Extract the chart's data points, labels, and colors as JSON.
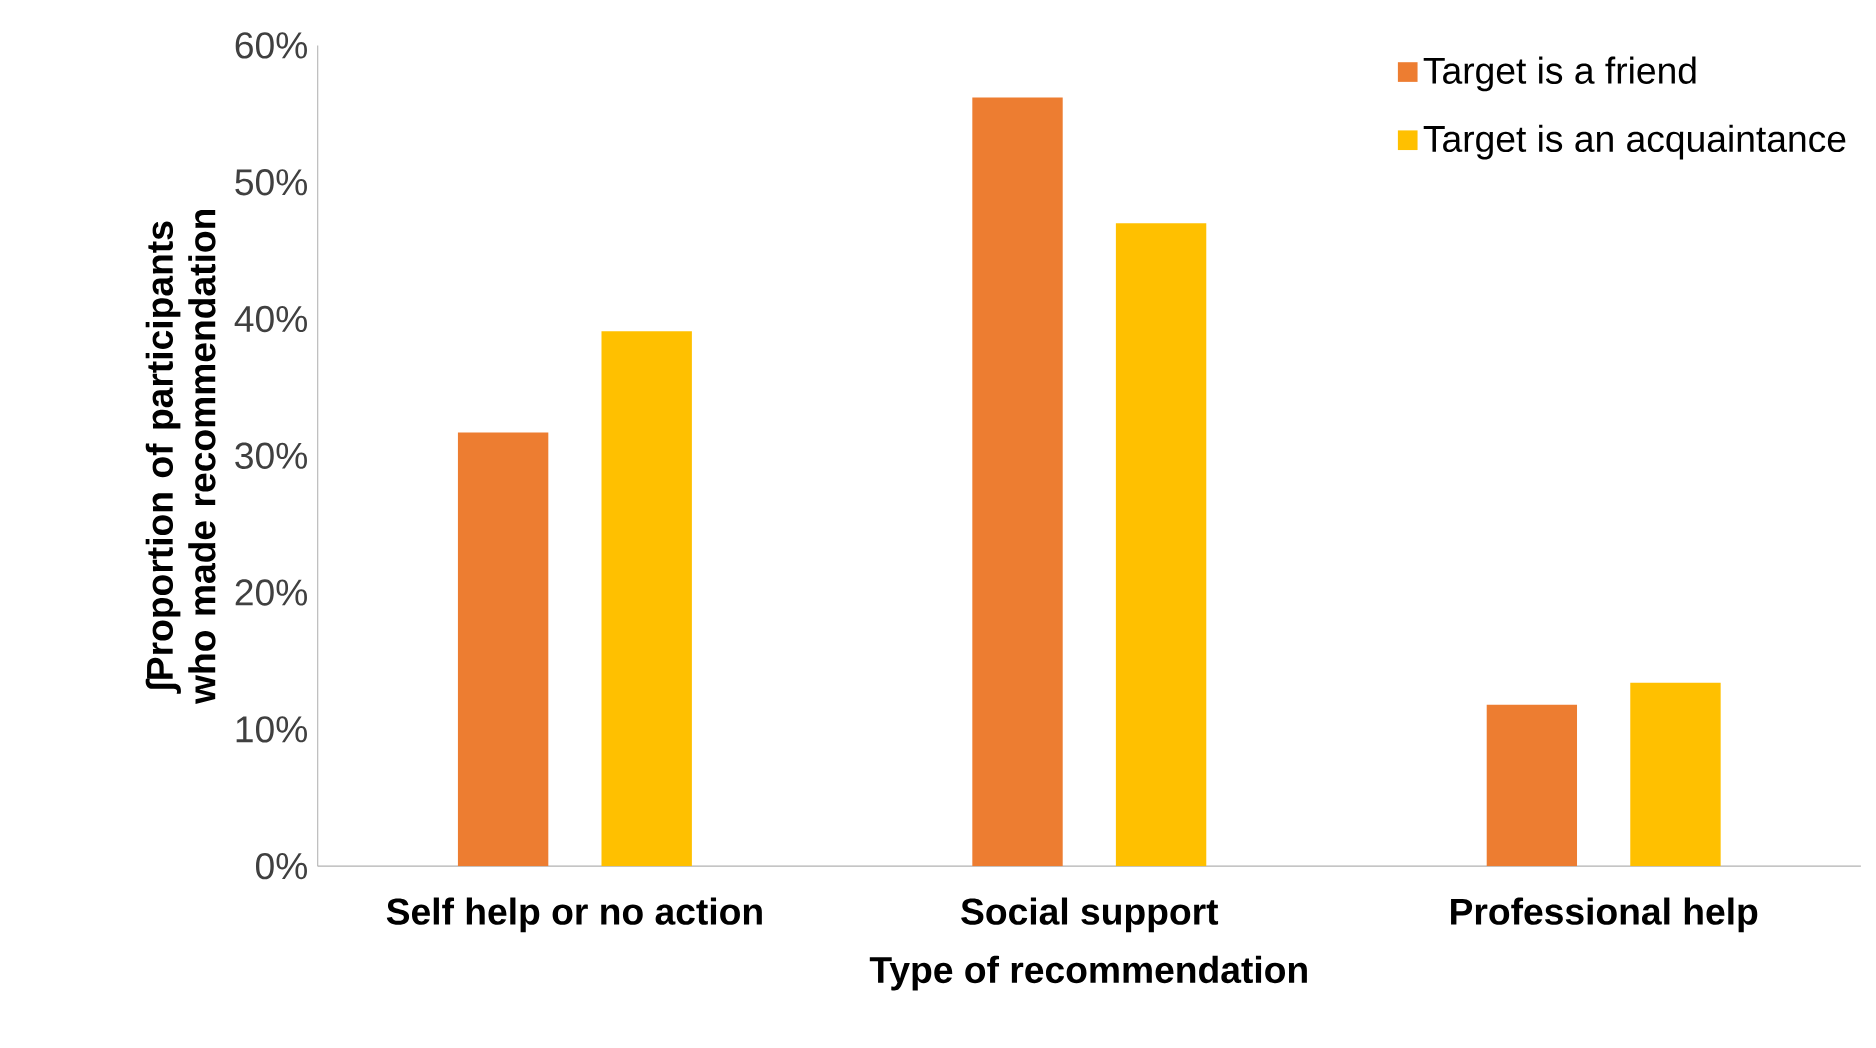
{
  "chart_data": {
    "type": "bar",
    "xlabel": "Type of recommendation",
    "ylabel": "∫Proportion of participants who made recommendation",
    "categories": [
      "Self help or no action",
      "Social support",
      "Professional help"
    ],
    "series": [
      {
        "name": "Target is a friend",
        "color": "#ed7d31",
        "values": [
          31.7,
          56.2,
          11.8
        ]
      },
      {
        "name": "Target is an acquaintance",
        "color": "#ffc000",
        "values": [
          39.1,
          47.0,
          13.4
        ]
      }
    ],
    "ylim": [
      0,
      60
    ],
    "yticks": [
      {
        "value": 0,
        "label": "0%"
      },
      {
        "value": 10,
        "label": "10%"
      },
      {
        "value": 20,
        "label": "20%"
      },
      {
        "value": 30,
        "label": "30%"
      },
      {
        "value": 40,
        "label": "40%"
      },
      {
        "value": 50,
        "label": "50%"
      },
      {
        "value": 60,
        "label": "60%"
      }
    ],
    "legend": "top right"
  }
}
